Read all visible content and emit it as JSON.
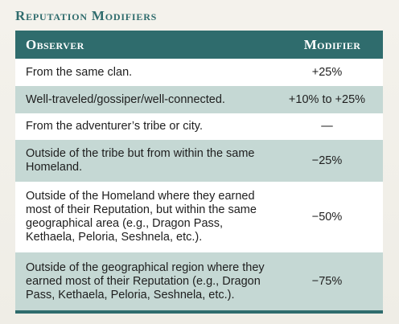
{
  "title": "Reputation Modifiers",
  "table": {
    "headers": {
      "observer": "Observer",
      "modifier": "Modifier"
    },
    "rows": [
      {
        "observer": "From the same clan.",
        "modifier": "+25%"
      },
      {
        "observer": "Well-traveled/gossiper/well-connected.",
        "modifier": "+10% to +25%"
      },
      {
        "observer": "From the adventurer’s tribe or city.",
        "modifier": "—"
      },
      {
        "observer": "Outside of the tribe but from within the same Homeland.",
        "modifier": "−25%"
      },
      {
        "observer": "Outside of the Homeland where they earned most of their Reputation, but within the same geographical area (e.g., Dragon Pass, Kethaela, Peloria, Seshnela, etc.).",
        "modifier": "−50%"
      },
      {
        "observer": "Outside of the geographical region where they earned most of their Reputation (e.g., Dragon Pass, Kethaela, Peloria, Seshnela, etc.).",
        "modifier": "−75%"
      }
    ]
  },
  "colors": {
    "header_bg": "#2f6c6d",
    "stripe": "#c5d8d4",
    "title": "#2f6c6d"
  }
}
